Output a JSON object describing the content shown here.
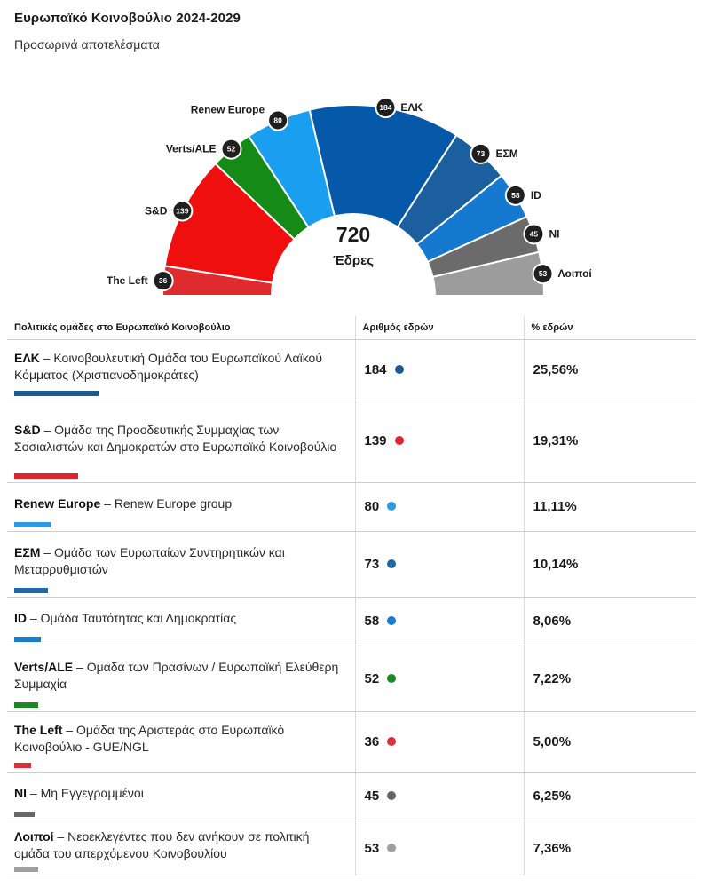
{
  "header": {
    "title": "Ευρωπαϊκό Κοινοβούλιο 2024-2029",
    "subtitle": "Προσωρινά αποτελέσματα"
  },
  "chart_data": {
    "type": "pie",
    "variant": "parliament-hemicycle",
    "total": 720,
    "total_label": "Έδρες",
    "slices": [
      {
        "label": "The Left",
        "value": 36,
        "color": "#df2a2e"
      },
      {
        "label": "S&D",
        "value": 139,
        "color": "#f00f0f"
      },
      {
        "label": "Verts/ALE",
        "value": 52,
        "color": "#158a16"
      },
      {
        "label": "Renew Europe",
        "value": 80,
        "color": "#1a9ef0"
      },
      {
        "label": "ΕΛΚ",
        "value": 184,
        "color": "#0559a8"
      },
      {
        "label": "ΕΣΜ",
        "value": 73,
        "color": "#1b5f9f"
      },
      {
        "label": "ID",
        "value": 58,
        "color": "#1479cf"
      },
      {
        "label": "NI",
        "value": 45,
        "color": "#6b6b6b"
      },
      {
        "label": "Λοιποί",
        "value": 53,
        "color": "#9c9c9c"
      }
    ]
  },
  "table": {
    "headers": {
      "group": "Πολιτικές ομάδες στο Ευρωπαϊκό Κοινοβούλιο",
      "seats": "Αριθμός εδρών",
      "percent": "% εδρών"
    },
    "rows": [
      {
        "abbr": "ΕΛΚ",
        "desc": " – Κοινοβουλευτική Ομάδα του Ευρωπαϊκού Λαϊκού Κόμματος (Χριστιανοδημοκράτες)",
        "seats": "184",
        "percent": "25,56%",
        "share": 0.2556,
        "color": "#1c5a93"
      },
      {
        "abbr": "S&D",
        "desc": " – Ομάδα της Προοδευτικής Συμμαχίας των Σοσιαλιστών και Δημοκρατών στο Ευρωπαϊκό Κοινοβούλιο",
        "seats": "139",
        "percent": "19,31%",
        "share": 0.1931,
        "color": "#e0242b"
      },
      {
        "abbr": "Renew Europe",
        "desc": " – Renew Europe group",
        "seats": "80",
        "percent": "11,11%",
        "share": 0.1111,
        "color": "#2d9be3"
      },
      {
        "abbr": "ΕΣΜ",
        "desc": " – Ομάδα των Ευρωπαίων Συντηρητικών και Μεταρρυθμιστών",
        "seats": "73",
        "percent": "10,14%",
        "share": 0.1014,
        "color": "#1e6aa5"
      },
      {
        "abbr": "ID",
        "desc": " – Ομάδα Ταυτότητας και Δημοκρατίας",
        "seats": "58",
        "percent": "8,06%",
        "share": 0.0806,
        "color": "#1a7ccc"
      },
      {
        "abbr": "Verts/ALE",
        "desc": " – Ομάδα των Πρασίνων / Ευρωπαϊκή Ελεύθερη Συμμαχία",
        "seats": "52",
        "percent": "7,22%",
        "share": 0.0722,
        "color": "#1c8a22"
      },
      {
        "abbr": "The Left",
        "desc": " – Ομάδα της Αριστεράς στο Ευρωπαϊκό Κοινοβούλιο - GUE/NGL",
        "seats": "36",
        "percent": "5,00%",
        "share": 0.05,
        "color": "#d9313a"
      },
      {
        "abbr": "NI",
        "desc": " – Μη Εγγεγραμμένοι",
        "seats": "45",
        "percent": "6,25%",
        "share": 0.0625,
        "color": "#666666"
      },
      {
        "abbr": "Λοιποί",
        "desc": " – Νεοεκλεγέντες που δεν ανήκουν σε πολιτική ομάδα του απερχόμενου Κοινοβουλίου",
        "seats": "53",
        "percent": "7,36%",
        "share": 0.0736,
        "color": "#a0a0a0"
      }
    ]
  }
}
